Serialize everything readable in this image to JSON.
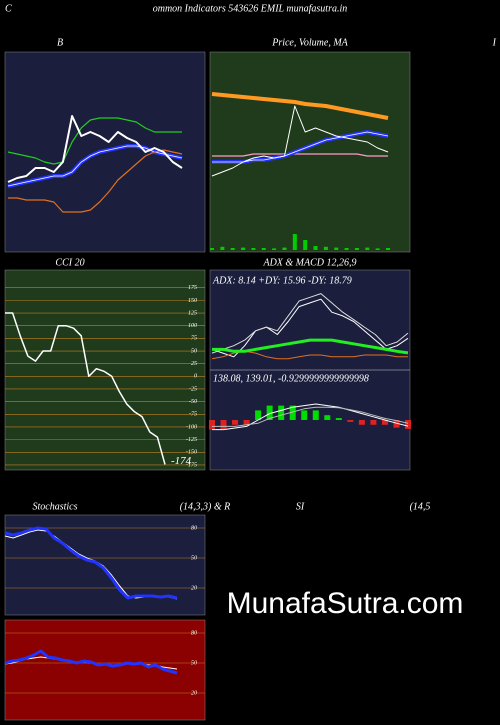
{
  "header": {
    "left": "C",
    "title": "ommon Indicators 543626 EMIL munafasutra.in",
    "right": "I"
  },
  "watermark": "MunafaSutra.com",
  "chart_data": [
    {
      "type": "line",
      "title": "B",
      "background": "#1b1e3c",
      "ylim": [
        0,
        100
      ],
      "series": [
        {
          "color": "#22cc22",
          "width": 1.2,
          "values": [
            50,
            49,
            48,
            47,
            45,
            44,
            45,
            55,
            62,
            66,
            67,
            67,
            67,
            66,
            65,
            62,
            60,
            60,
            60,
            60
          ]
        },
        {
          "color": "#2233ff",
          "width": 4,
          "double": true,
          "values": [
            33,
            34,
            35,
            36,
            37,
            38,
            38,
            40,
            45,
            48,
            50,
            51,
            52,
            53,
            53,
            52,
            50,
            49,
            48,
            47
          ]
        },
        {
          "color": "#e07020",
          "width": 1.2,
          "values": [
            27,
            27,
            26,
            26,
            26,
            25,
            20,
            20,
            20,
            21,
            25,
            30,
            36,
            40,
            44,
            48,
            50,
            51,
            50,
            49
          ]
        },
        {
          "color": "#ffffff",
          "width": 2,
          "values": [
            35,
            37,
            38,
            42,
            42,
            40,
            45,
            68,
            58,
            60,
            58,
            55,
            60,
            57,
            55,
            50,
            52,
            50,
            45,
            42
          ]
        }
      ]
    },
    {
      "type": "line",
      "title": "Price, Volume, MA",
      "background": "#1f3b1c",
      "ylim": [
        0,
        100
      ],
      "series": [
        {
          "color": "#ff9922",
          "width": 4,
          "values": [
            79,
            78.5,
            78,
            77.5,
            77,
            76.5,
            76,
            75.5,
            75,
            74,
            73.5,
            73,
            72,
            71,
            70,
            69,
            68,
            67
          ]
        },
        {
          "color": "#ff99cc",
          "width": 1.2,
          "values": [
            48,
            48,
            48,
            48,
            49,
            49,
            49,
            49,
            49,
            49,
            49,
            49,
            49,
            49,
            49,
            48,
            48,
            48
          ]
        },
        {
          "color": "#2233ff",
          "width": 4,
          "double": true,
          "values": [
            45,
            45,
            45,
            45,
            46,
            46,
            47,
            48,
            50,
            52,
            54,
            56,
            57,
            58,
            59,
            60,
            59,
            58
          ]
        },
        {
          "color": "#ffffff",
          "width": 1,
          "values": [
            38,
            40,
            42,
            45,
            47,
            48,
            47,
            48,
            73,
            60,
            62,
            60,
            58,
            57,
            56,
            55,
            52,
            50
          ]
        }
      ],
      "volume": {
        "color": "#00cc00",
        "ylim": [
          0,
          100
        ],
        "values": [
          5,
          8,
          5,
          6,
          5,
          5,
          4,
          6,
          40,
          25,
          10,
          8,
          6,
          5,
          5,
          6,
          4,
          5
        ]
      }
    },
    {
      "type": "line",
      "title": "CCI 20",
      "background": "#1f3b1c",
      "ylim": [
        -185,
        210
      ],
      "grid_color": "#c08020",
      "yticks": [
        175,
        150,
        125,
        100,
        75,
        50,
        25,
        0,
        -25,
        -50,
        -75,
        -100,
        -125,
        -150,
        -175
      ],
      "series": [
        {
          "color": "#ffffff",
          "width": 1.5,
          "values": [
            125,
            125,
            80,
            40,
            30,
            50,
            50,
            100,
            100,
            95,
            80,
            0,
            15,
            10,
            0,
            -30,
            -55,
            -70,
            -80,
            -110,
            -120,
            -174
          ]
        }
      ]
    },
    {
      "type": "adx-macd",
      "title": "ADX  & MACD 12,26,9",
      "background": "#1b1e3c",
      "adx": {
        "label": "ADX: 8.14  +DY: 15.96  -DY: 18.79",
        "ylim": [
          0,
          50
        ],
        "series": [
          {
            "color": "#ffffff",
            "width": 1,
            "values": [
              10,
              8,
              6,
              12,
              20,
              22,
              18,
              25,
              33,
              35,
              37,
              30,
              28,
              25,
              20,
              15,
              10,
              12,
              15.96
            ]
          },
          {
            "color": "#dddddd",
            "width": 1,
            "values": [
              8,
              10,
              12,
              15,
              20,
              22,
              20,
              28,
              36,
              38,
              40,
              35,
              30,
              26,
              22,
              18,
              12,
              14,
              18.79
            ]
          },
          {
            "color": "#e07020",
            "width": 1,
            "values": [
              5,
              6,
              8,
              9,
              8,
              6,
              5,
              5,
              6,
              7,
              7,
              6,
              6,
              6,
              7,
              7,
              7,
              6,
              6
            ]
          },
          {
            "color": "#22ee22",
            "width": 3,
            "values": [
              10,
              10,
              9,
              9,
              10,
              11,
              12,
              13,
              14,
              15,
              15,
              15,
              14,
              13,
              12,
              11,
              10,
              9,
              8.14
            ]
          }
        ]
      },
      "macd": {
        "label": "138.08,  139.01,  -0.9299999999999998",
        "ylim": [
          125,
          155
        ],
        "histogram": {
          "ylim": [
            -5,
            5
          ],
          "positive_color": "#00dd00",
          "negative_color": "#dd2222",
          "values": [
            -1,
            -1,
            -0.5,
            -0.5,
            1,
            1.5,
            1.5,
            1.5,
            1,
            1,
            0.5,
            0.2,
            -0.2,
            -0.5,
            -0.5,
            -0.5,
            -0.8,
            -0.93
          ]
        },
        "series": [
          {
            "color": "#ffffff",
            "width": 1,
            "values": [
              137,
              137,
              137.5,
              138,
              140,
              142,
              143,
              144,
              144.5,
              145,
              144.5,
              144,
              143,
              142,
              141,
              140,
              139,
              138.08
            ]
          },
          {
            "color": "#bbbbbb",
            "width": 1,
            "values": [
              138,
              138,
              138,
              138.5,
              139,
              140.5,
              141.5,
              142.5,
              143.5,
              144,
              144,
              143.8,
              143.2,
              142.5,
              141.5,
              140.5,
              139.8,
              139.01
            ]
          }
        ]
      }
    },
    {
      "type": "line",
      "title": "Stochastics",
      "subtitle": "(14,3,3) & R",
      "background": "#1b1e3c",
      "ylim": [
        -7,
        93
      ],
      "grid_color": "#c08020",
      "yticks": [
        80,
        50,
        20
      ],
      "series": [
        {
          "color": "#ffffff",
          "width": 1,
          "values": [
            72,
            70,
            73,
            76,
            78,
            77,
            72,
            66,
            60,
            54,
            50,
            47,
            42,
            33,
            22,
            12,
            10,
            11,
            12,
            12,
            11,
            9
          ]
        },
        {
          "color": "#2233ff",
          "width": 3,
          "values": [
            75,
            73,
            75,
            78,
            80,
            79,
            70,
            65,
            58,
            52,
            48,
            46,
            40,
            30,
            18,
            10,
            12,
            12,
            12,
            11,
            12,
            10
          ]
        }
      ]
    },
    {
      "type": "line",
      "title": "SI",
      "subtitle": "(14,5",
      "background": "#8b0000",
      "ylim": [
        -7,
        93
      ],
      "grid_color": "#c08020",
      "yticks": [
        80,
        50,
        20
      ],
      "series": [
        {
          "color": "#ffffff",
          "width": 1,
          "values": [
            49,
            50,
            52,
            54,
            55,
            56,
            55,
            54,
            53,
            52,
            51,
            51,
            50,
            49,
            49,
            48,
            48,
            49,
            49,
            49,
            48,
            48,
            46,
            45,
            44
          ]
        },
        {
          "color": "#2233ff",
          "width": 3,
          "values": [
            50,
            52,
            53,
            55,
            58,
            62,
            56,
            55,
            53,
            52,
            50,
            52,
            51,
            48,
            49,
            47,
            48,
            50,
            49,
            50,
            46,
            48,
            44,
            42,
            40
          ]
        }
      ]
    }
  ]
}
